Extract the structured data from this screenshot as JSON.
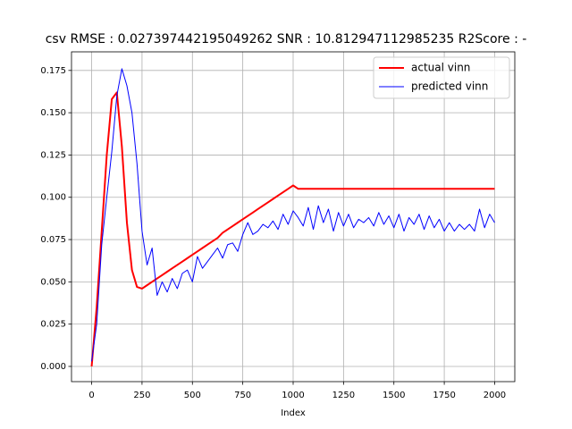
{
  "chart_data": {
    "type": "line",
    "title": "csv RMSE : 0.027397442195049262  SNR : 10.812947112985235 R2Score : -",
    "xlabel": "Index",
    "x": [
      0,
      25,
      50,
      75,
      100,
      125,
      150,
      175,
      200,
      225,
      250,
      275,
      300,
      325,
      350,
      375,
      400,
      425,
      450,
      475,
      500,
      525,
      550,
      575,
      600,
      625,
      650,
      675,
      700,
      725,
      750,
      775,
      800,
      825,
      850,
      875,
      900,
      925,
      950,
      975,
      1000,
      1025,
      1050,
      1075,
      1100,
      1125,
      1150,
      1175,
      1200,
      1225,
      1250,
      1275,
      1300,
      1325,
      1350,
      1375,
      1400,
      1425,
      1450,
      1475,
      1500,
      1525,
      1550,
      1575,
      1600,
      1625,
      1650,
      1675,
      1700,
      1725,
      1750,
      1775,
      1800,
      1825,
      1850,
      1875,
      1900,
      1925,
      1950,
      1975,
      2000
    ],
    "series": [
      {
        "name": "actual vinn",
        "color": "#ff0000",
        "width": 2,
        "values": [
          0.0,
          0.035,
          0.08,
          0.125,
          0.158,
          0.162,
          0.13,
          0.085,
          0.057,
          0.047,
          0.046,
          0.048,
          0.05,
          0.052,
          0.054,
          0.056,
          0.058,
          0.06,
          0.062,
          0.064,
          0.066,
          0.068,
          0.07,
          0.072,
          0.074,
          0.076,
          0.079,
          0.081,
          0.083,
          0.085,
          0.087,
          0.089,
          0.091,
          0.093,
          0.095,
          0.097,
          0.099,
          0.101,
          0.103,
          0.105,
          0.107,
          0.105,
          0.105,
          0.105,
          0.105,
          0.105,
          0.105,
          0.105,
          0.105,
          0.105,
          0.105,
          0.105,
          0.105,
          0.105,
          0.105,
          0.105,
          0.105,
          0.105,
          0.105,
          0.105,
          0.105,
          0.105,
          0.105,
          0.105,
          0.105,
          0.105,
          0.105,
          0.105,
          0.105,
          0.105,
          0.105,
          0.105,
          0.105,
          0.105,
          0.105,
          0.105,
          0.105,
          0.105,
          0.105,
          0.105,
          0.105
        ]
      },
      {
        "name": "predicted vinn",
        "color": "#0000ff",
        "width": 1,
        "values": [
          0.003,
          0.025,
          0.072,
          0.1,
          0.127,
          0.16,
          0.176,
          0.166,
          0.15,
          0.12,
          0.08,
          0.06,
          0.07,
          0.042,
          0.05,
          0.044,
          0.052,
          0.046,
          0.055,
          0.057,
          0.05,
          0.065,
          0.058,
          0.062,
          0.066,
          0.07,
          0.064,
          0.072,
          0.073,
          0.068,
          0.078,
          0.085,
          0.078,
          0.08,
          0.084,
          0.082,
          0.086,
          0.081,
          0.09,
          0.084,
          0.092,
          0.088,
          0.083,
          0.094,
          0.081,
          0.095,
          0.085,
          0.093,
          0.08,
          0.091,
          0.083,
          0.09,
          0.082,
          0.087,
          0.085,
          0.088,
          0.083,
          0.091,
          0.084,
          0.089,
          0.082,
          0.09,
          0.08,
          0.088,
          0.084,
          0.09,
          0.081,
          0.089,
          0.082,
          0.087,
          0.08,
          0.085,
          0.08,
          0.084,
          0.081,
          0.084,
          0.08,
          0.093,
          0.082,
          0.09,
          0.085
        ]
      }
    ],
    "xlim": [
      -100,
      2100
    ],
    "ylim": [
      -0.009,
      0.186
    ],
    "xticks": [
      0,
      250,
      500,
      750,
      1000,
      1250,
      1500,
      1750,
      2000
    ],
    "yticks": [
      {
        "value": 0,
        "label": "0.000"
      },
      0.025,
      {
        "value": 0.05,
        "label": "0.050"
      },
      0.075,
      {
        "value": 0.1,
        "label": "0.100"
      },
      0.125,
      {
        "value": 0.15,
        "label": "0.150"
      },
      0.175
    ],
    "grid": true,
    "legend": "upper right"
  }
}
